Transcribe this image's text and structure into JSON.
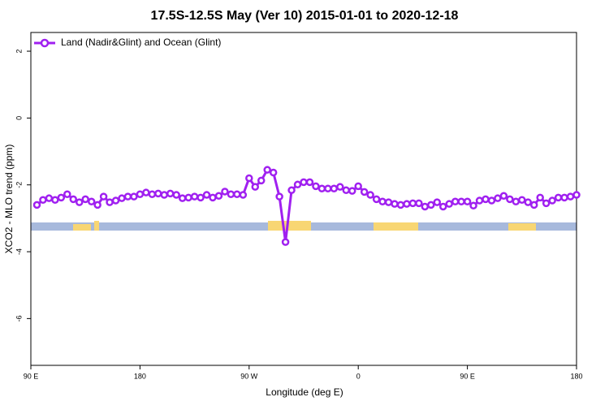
{
  "chart_data": {
    "type": "line",
    "title": "17.5S-12.5S May (Ver 10)   2015-01-01 to 2020-12-18",
    "x_label": "Longitude (deg E)",
    "y_label": "XCO2 - MLO trend (ppm)",
    "legend_position": "top-left",
    "xlim": [
      90,
      540
    ],
    "xticks": [
      {
        "value": 90,
        "label": "90 E"
      },
      {
        "value": 180,
        "label": "180"
      },
      {
        "value": 270,
        "label": "90 W"
      },
      {
        "value": 360,
        "label": "0"
      },
      {
        "value": 450,
        "label": "90 E"
      },
      {
        "value": 540,
        "label": "180"
      }
    ],
    "ylim": [
      -7.4,
      2.56
    ],
    "yticks": [
      -6,
      -4,
      -2,
      0,
      2
    ],
    "x": [
      95,
      100,
      105,
      110,
      115,
      120,
      125,
      130,
      135,
      140,
      145,
      150,
      155,
      160,
      165,
      170,
      175,
      180,
      185,
      190,
      195,
      200,
      205,
      210,
      215,
      220,
      225,
      230,
      235,
      240,
      245,
      250,
      255,
      260,
      265,
      270,
      275,
      280,
      285,
      290,
      295,
      300,
      305,
      310,
      315,
      320,
      325,
      330,
      335,
      340,
      345,
      350,
      355,
      360,
      365,
      370,
      375,
      380,
      385,
      390,
      395,
      400,
      405,
      410,
      415,
      420,
      425,
      430,
      435,
      440,
      445,
      450,
      455,
      460,
      465,
      470,
      475,
      480,
      485,
      490,
      495,
      500,
      505,
      510,
      515,
      520,
      525,
      530,
      535,
      540
    ],
    "series": [
      {
        "name": "Land (Nadir&Glint) and Ocean (Glint)",
        "color": "#a020f0",
        "values": [
          -2.6,
          -2.45,
          -2.4,
          -2.45,
          -2.38,
          -2.28,
          -2.43,
          -2.52,
          -2.43,
          -2.5,
          -2.6,
          -2.35,
          -2.52,
          -2.47,
          -2.4,
          -2.35,
          -2.35,
          -2.28,
          -2.23,
          -2.28,
          -2.26,
          -2.3,
          -2.26,
          -2.3,
          -2.4,
          -2.38,
          -2.35,
          -2.38,
          -2.3,
          -2.38,
          -2.33,
          -2.2,
          -2.28,
          -2.28,
          -2.3,
          -1.8,
          -2.06,
          -1.87,
          -1.55,
          -1.63,
          -2.35,
          -3.71,
          -2.16,
          -1.99,
          -1.92,
          -1.92,
          -2.04,
          -2.11,
          -2.11,
          -2.11,
          -2.06,
          -2.16,
          -2.18,
          -2.04,
          -2.21,
          -2.3,
          -2.43,
          -2.5,
          -2.52,
          -2.57,
          -2.6,
          -2.57,
          -2.55,
          -2.55,
          -2.65,
          -2.6,
          -2.52,
          -2.65,
          -2.57,
          -2.5,
          -2.5,
          -2.5,
          -2.62,
          -2.47,
          -2.43,
          -2.47,
          -2.4,
          -2.33,
          -2.43,
          -2.5,
          -2.45,
          -2.52,
          -2.6,
          -2.38,
          -2.55,
          -2.47,
          -2.38,
          -2.38,
          -2.35,
          -2.3
        ]
      }
    ]
  }
}
